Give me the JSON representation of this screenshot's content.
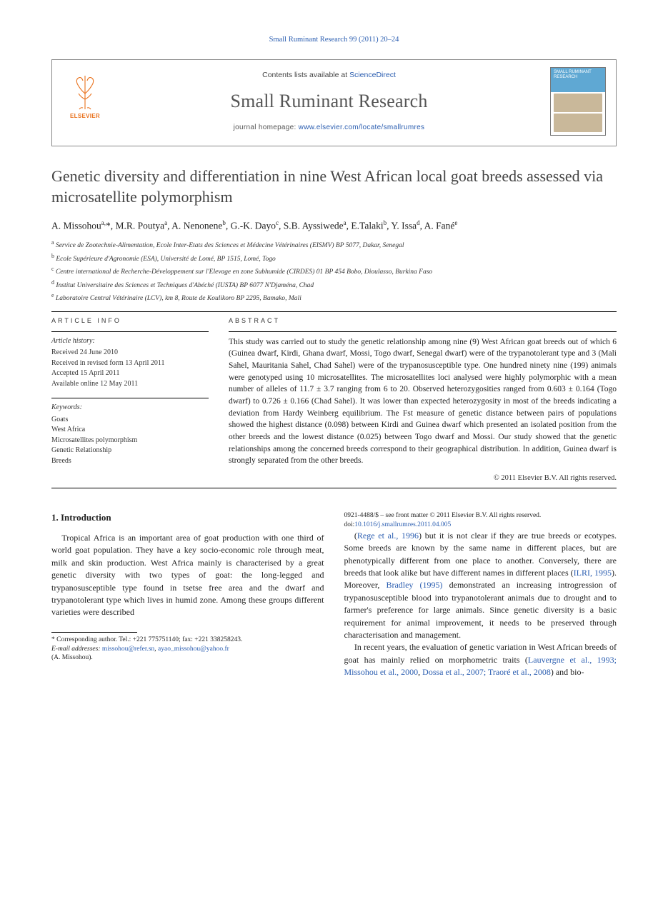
{
  "running_head": {
    "journal_ref": "Small Ruminant Research 99 (2011) 20–24"
  },
  "header": {
    "publisher": "ELSEVIER",
    "contents_prefix": "Contents lists available at ",
    "contents_link": "ScienceDirect",
    "journal_name": "Small Ruminant Research",
    "homepage_prefix": "journal homepage: ",
    "homepage_url": "www.elsevier.com/locate/smallrumres",
    "cover_title": "SMALL RUMINANT RESEARCH"
  },
  "article": {
    "title": "Genetic diversity and differentiation in nine West African local goat breeds assessed via microsatellite polymorphism",
    "authors_html": "A. Missohou<sup>a,</sup>*, M.R. Poutya<sup>a</sup>, A. Nenonene<sup>b</sup>, G.-K. Dayo<sup>c</sup>, S.B. Ayssiwede<sup>a</sup>, E.Talaki<sup>b</sup>, Y. Issa<sup>d</sup>, A. Fané<sup>e</sup>",
    "affiliations": [
      {
        "sup": "a",
        "text": "Service de Zootechnie-Alimentation, Ecole Inter-Etats des Sciences et Médecine Vétérinaires (EISMV) BP 5077, Dakar, Senegal"
      },
      {
        "sup": "b",
        "text": "Ecole Supérieure d'Agronomie (ESA), Université de Lomé, BP 1515, Lomé, Togo"
      },
      {
        "sup": "c",
        "text": "Centre international de Recherche-Développement sur l'Elevage en zone Subhumide (CIRDES) 01 BP 454 Bobo, Dioulasso, Burkina Faso"
      },
      {
        "sup": "d",
        "text": "Institut Universitaire des Sciences et Techniques d'Abéché (IUSTA) BP 6077 N'Djaména, Chad"
      },
      {
        "sup": "e",
        "text": "Laboratoire Central Vétérinaire (LCV), km 8, Route de Koulikoro BP 2295, Bamako, Mali"
      }
    ]
  },
  "article_info": {
    "head": "ARTICLE INFO",
    "history_head": "Article history:",
    "history": [
      "Received 24 June 2010",
      "Received in revised form 13 April 2011",
      "Accepted 15 April 2011",
      "Available online 12 May 2011"
    ],
    "keywords_head": "Keywords:",
    "keywords": [
      "Goats",
      "West Africa",
      "Microsatellites polymorphism",
      "Genetic Relationship",
      "Breeds"
    ]
  },
  "abstract": {
    "head": "ABSTRACT",
    "body": "This study was carried out to study the genetic relationship among nine (9) West African goat breeds out of which 6 (Guinea dwarf, Kirdi, Ghana dwarf, Mossi, Togo dwarf, Senegal dwarf) were of the trypanotolerant type and 3 (Mali Sahel, Mauritania Sahel, Chad Sahel) were of the trypanosusceptible type. One hundred ninety nine (199) animals were genotyped using 10 microsatellites. The microsatellites loci analysed were highly polymorphic with a mean number of alleles of 11.7 ± 3.7 ranging from 6 to 20. Observed heterozygosities ranged from 0.603 ± 0.164 (Togo dwarf) to 0.726 ± 0.166 (Chad Sahel). It was lower than expected heterozygosity in most of the breeds indicating a deviation from Hardy Weinberg equilibrium. The Fst measure of genetic distance between pairs of populations showed the highest distance (0.098) between Kirdi and Guinea dwarf which presented an isolated position from the other breeds and the lowest distance (0.025) between Togo dwarf and Mossi. Our study showed that the genetic relationships among the concerned breeds correspond to their geographical distribution. In addition, Guinea dwarf is strongly separated from the other breeds.",
    "copyright": "© 2011 Elsevier B.V. All rights reserved."
  },
  "body": {
    "section_title": "1.  Introduction",
    "para1": "Tropical Africa is an important area of goat production with one third of world goat population. They have a key socio-economic role through meat, milk and skin production. West Africa mainly is characterised by a great genetic diversity with two types of goat: the long-legged and trypanosusceptible type found in tsetse free area and the dwarf and trypanotolerant type which lives in humid zone. Among these groups different varieties were described",
    "para2_pre": "(",
    "para2_cite1": "Rege et al., 1996",
    "para2_mid1": ") but it is not clear if they are true breeds or ecotypes. Some breeds are known by the same name in different places, but are phenotypically different from one place to another. Conversely, there are breeds that look alike but have different names in different places (",
    "para2_cite2": "ILRI, 1995",
    "para2_mid2": "). Moreover, ",
    "para2_cite3": "Bradley (1995)",
    "para2_mid3": " demonstrated an increasing introgression of trypanosusceptible blood into trypanotolerant animals due to drought and to farmer's preference for large animals. Since genetic diversity is a basic requirement for animal improvement, it needs to be preserved through characterisation and management.",
    "para3_pre": "In recent years, the evaluation of genetic variation in West African breeds of goat has mainly relied on morphometric traits (",
    "para3_cite1": "Lauvergne et al., 1993; Missohou et al., 2000",
    "para3_mid": ", ",
    "para3_cite2": "Dossa et al., 2007; Traoré et al., 2008",
    "para3_post": ") and bio-"
  },
  "footnote": {
    "corr_label": "* Corresponding author. Tel.: +221 775751140; fax: +221 338258243.",
    "email_label": "E-mail addresses:",
    "email1": "missohou@refer.sn",
    "sep": ", ",
    "email2": "ayao_missohou@yahoo.fr",
    "corr_author": "(A. Missohou)."
  },
  "footer": {
    "issn_line": "0921-4488/$ – see front matter © 2011 Elsevier B.V. All rights reserved.",
    "doi_prefix": "doi:",
    "doi": "10.1016/j.smallrumres.2011.04.005"
  },
  "colors": {
    "link": "#2a5db0",
    "publisher": "#e9711c",
    "rule": "#000000",
    "text": "#222222",
    "heading_gray": "#444444"
  }
}
